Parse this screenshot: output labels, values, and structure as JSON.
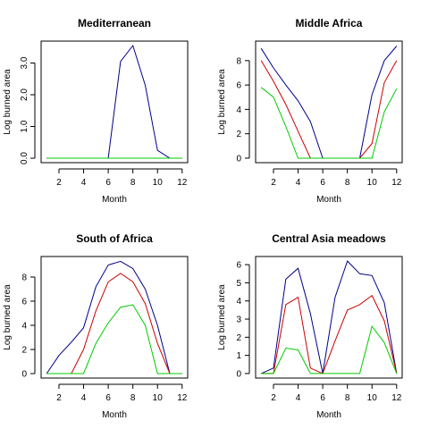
{
  "chart_data": [
    {
      "type": "line",
      "title": "Mediterranean",
      "xlabel": "Month",
      "ylabel": "Log burned area",
      "x": [
        1,
        2,
        3,
        4,
        5,
        6,
        7,
        8,
        9,
        10,
        11,
        12
      ],
      "xticks": [
        2,
        4,
        6,
        8,
        10,
        12
      ],
      "yticks": [
        0,
        1,
        2,
        3
      ],
      "ytick_labels": [
        "0.0",
        "1.0",
        "2.0",
        "3.0"
      ],
      "ytick_rotated": true,
      "xlim": [
        0.55,
        12.45
      ],
      "ylim": [
        -0.14,
        3.69
      ],
      "series": [
        {
          "color": "#00008b",
          "values": [
            0,
            0,
            0,
            0,
            0,
            0,
            3.05,
            3.55,
            2.3,
            0.25,
            0,
            0
          ]
        },
        {
          "color": "#cc0000",
          "values": [
            0,
            0,
            0,
            0,
            0,
            0,
            0,
            0,
            0,
            0,
            0,
            0
          ]
        },
        {
          "color": "#00cc00",
          "values": [
            0,
            0,
            0,
            0,
            0,
            0,
            0,
            0,
            0,
            0,
            0,
            0
          ]
        }
      ]
    },
    {
      "type": "line",
      "title": "Middle Africa",
      "xlabel": "Month",
      "ylabel": "Log burned area",
      "x": [
        1,
        2,
        3,
        4,
        5,
        6,
        7,
        8,
        9,
        10,
        11,
        12
      ],
      "xticks": [
        2,
        4,
        6,
        8,
        10,
        12
      ],
      "yticks": [
        0,
        2,
        4,
        6,
        8
      ],
      "ytick_labels": [
        "0",
        "2",
        "4",
        "6",
        "8"
      ],
      "ytick_rotated": false,
      "xlim": [
        0.55,
        12.45
      ],
      "ylim": [
        -0.37,
        9.6
      ],
      "series": [
        {
          "color": "#00008b",
          "values": [
            9.0,
            7.4,
            6.0,
            4.7,
            3.0,
            0,
            0,
            0,
            0,
            5.2,
            8.0,
            9.2
          ]
        },
        {
          "color": "#cc0000",
          "values": [
            8.0,
            6.3,
            4.4,
            2.2,
            0,
            0,
            0,
            0,
            0,
            1.2,
            6.2,
            8.0
          ]
        },
        {
          "color": "#00cc00",
          "values": [
            5.8,
            5.0,
            2.6,
            0,
            0,
            0,
            0,
            0,
            0,
            0,
            3.8,
            5.7
          ]
        }
      ]
    },
    {
      "type": "line",
      "title": "South of Africa",
      "xlabel": "Month",
      "ylabel": "Log burned area",
      "x": [
        1,
        2,
        3,
        4,
        5,
        6,
        7,
        8,
        9,
        10,
        11,
        12
      ],
      "xticks": [
        2,
        4,
        6,
        8,
        10,
        12
      ],
      "yticks": [
        0,
        2,
        4,
        6,
        8
      ],
      "ytick_labels": [
        "0",
        "2",
        "4",
        "6",
        "8"
      ],
      "ytick_rotated": false,
      "xlim": [
        0.55,
        12.45
      ],
      "ylim": [
        -0.37,
        9.7
      ],
      "series": [
        {
          "color": "#00008b",
          "values": [
            0,
            1.5,
            2.6,
            3.8,
            7.2,
            9.0,
            9.3,
            8.7,
            7.0,
            4.0,
            0,
            0
          ]
        },
        {
          "color": "#cc0000",
          "values": [
            0,
            0,
            0,
            2.0,
            5.2,
            7.6,
            8.3,
            7.6,
            5.8,
            2.5,
            0,
            0
          ]
        },
        {
          "color": "#00cc00",
          "values": [
            0,
            0,
            0,
            0,
            2.5,
            4.2,
            5.5,
            5.7,
            4.0,
            0,
            0,
            0
          ]
        }
      ]
    },
    {
      "type": "line",
      "title": "Central Asia meadows",
      "xlabel": "Month",
      "ylabel": "Log burned area",
      "x": [
        1,
        2,
        3,
        4,
        5,
        6,
        7,
        8,
        9,
        10,
        11,
        12
      ],
      "xticks": [
        2,
        4,
        6,
        8,
        10,
        12
      ],
      "yticks": [
        0,
        1,
        2,
        3,
        4,
        5,
        6
      ],
      "ytick_labels": [
        "0",
        "1",
        "2",
        "3",
        "4",
        "5",
        "6"
      ],
      "ytick_rotated": false,
      "xlim": [
        0.55,
        12.45
      ],
      "ylim": [
        -0.25,
        6.45
      ],
      "series": [
        {
          "color": "#00008b",
          "values": [
            0,
            0.3,
            5.2,
            5.8,
            3.3,
            0,
            4.2,
            6.2,
            5.5,
            5.4,
            3.9,
            0
          ]
        },
        {
          "color": "#cc0000",
          "values": [
            0,
            0,
            3.8,
            4.2,
            0.3,
            0,
            1.8,
            3.5,
            3.8,
            4.3,
            2.9,
            0
          ]
        },
        {
          "color": "#00cc00",
          "values": [
            0,
            0,
            1.4,
            1.3,
            0,
            0,
            0,
            0,
            0,
            2.6,
            1.7,
            0
          ]
        }
      ]
    }
  ]
}
